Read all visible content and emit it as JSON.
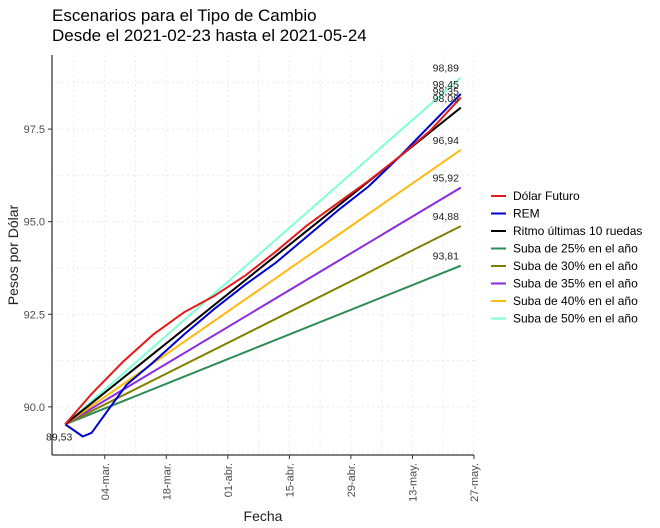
{
  "chart_data": {
    "type": "line",
    "title": [
      "Escenarios para el Tipo de Cambio",
      "Desde el 2021-02-23 hasta el 2021-05-24"
    ],
    "xlabel": "Fecha",
    "ylabel": "Pesos por Dólar",
    "x_domain": [
      "2021-02-20",
      "2021-05-27"
    ],
    "x_ticks": [
      {
        "date": "2021-03-04",
        "label": "04-mar."
      },
      {
        "date": "2021-03-18",
        "label": "18-mar."
      },
      {
        "date": "2021-04-01",
        "label": "01-abr."
      },
      {
        "date": "2021-04-15",
        "label": "15-abr."
      },
      {
        "date": "2021-04-29",
        "label": "29-abr."
      },
      {
        "date": "2021-05-13",
        "label": "13-may."
      },
      {
        "date": "2021-05-27",
        "label": "27-may."
      }
    ],
    "ylim": [
      88.7,
      99.5
    ],
    "y_ticks": [
      90.0,
      92.5,
      95.0,
      97.5
    ],
    "y_tick_labels": [
      "90.0",
      "92.5",
      "95.0",
      "97.5"
    ],
    "grid": true,
    "legend_position": "right",
    "start_label": {
      "date": "2021-02-23",
      "value": 89.53,
      "text": "89,53"
    },
    "series": [
      {
        "name": "Dólar Futuro",
        "color": "#e41a1c",
        "x": [
          "2021-02-23",
          "2021-03-01",
          "2021-03-08",
          "2021-03-15",
          "2021-03-22",
          "2021-03-29",
          "2021-04-05",
          "2021-04-12",
          "2021-04-19",
          "2021-04-26",
          "2021-05-03",
          "2021-05-10",
          "2021-05-17",
          "2021-05-24"
        ],
        "y": [
          89.53,
          90.35,
          91.2,
          91.95,
          92.55,
          93.0,
          93.55,
          94.2,
          94.9,
          95.5,
          96.1,
          96.75,
          97.45,
          98.35
        ]
      },
      {
        "name": "REM",
        "color": "#0000cd",
        "x": [
          "2021-02-23",
          "2021-02-27",
          "2021-03-01",
          "2021-03-05",
          "2021-03-09",
          "2021-03-15",
          "2021-03-22",
          "2021-03-29",
          "2021-04-05",
          "2021-04-12",
          "2021-04-19",
          "2021-04-26",
          "2021-05-03",
          "2021-05-10",
          "2021-05-17",
          "2021-05-24"
        ],
        "y": [
          89.53,
          89.2,
          89.3,
          89.95,
          90.6,
          91.2,
          91.95,
          92.65,
          93.3,
          93.9,
          94.6,
          95.3,
          95.95,
          96.75,
          97.6,
          98.45
        ]
      },
      {
        "name": "Ritmo últimas 10 ruedas",
        "color": "#000000",
        "x": [
          "2021-02-23",
          "2021-05-24"
        ],
        "y": [
          89.53,
          98.08
        ]
      },
      {
        "name": "Suba de 25% en el año",
        "color": "#2e8b57",
        "x": [
          "2021-02-23",
          "2021-05-24"
        ],
        "y": [
          89.53,
          93.81
        ]
      },
      {
        "name": "Suba de 30% en el año",
        "color": "#808000",
        "x": [
          "2021-02-23",
          "2021-05-24"
        ],
        "y": [
          89.53,
          94.88
        ]
      },
      {
        "name": "Suba de 35% en el año",
        "color": "#8a2be2",
        "x": [
          "2021-02-23",
          "2021-05-24"
        ],
        "y": [
          89.53,
          95.92
        ]
      },
      {
        "name": "Suba de 40% en el año",
        "color": "#ffb90f",
        "x": [
          "2021-02-23",
          "2021-05-24"
        ],
        "y": [
          89.53,
          96.94
        ]
      },
      {
        "name": "Suba de 50% en el año",
        "color": "#7fffd4",
        "x": [
          "2021-02-23",
          "2021-05-24"
        ],
        "y": [
          89.53,
          98.89
        ]
      }
    ],
    "end_labels": [
      {
        "value": 98.89,
        "text": "98,89"
      },
      {
        "value": 98.45,
        "text": "98,45"
      },
      {
        "value": 98.35,
        "text": "98,35"
      },
      {
        "value": 98.08,
        "text": "98,08"
      },
      {
        "value": 96.94,
        "text": "96,94"
      },
      {
        "value": 95.92,
        "text": "95,92"
      },
      {
        "value": 94.88,
        "text": "94,88"
      },
      {
        "value": 93.81,
        "text": "93,81"
      }
    ],
    "end_label_date": "2021-05-24"
  }
}
